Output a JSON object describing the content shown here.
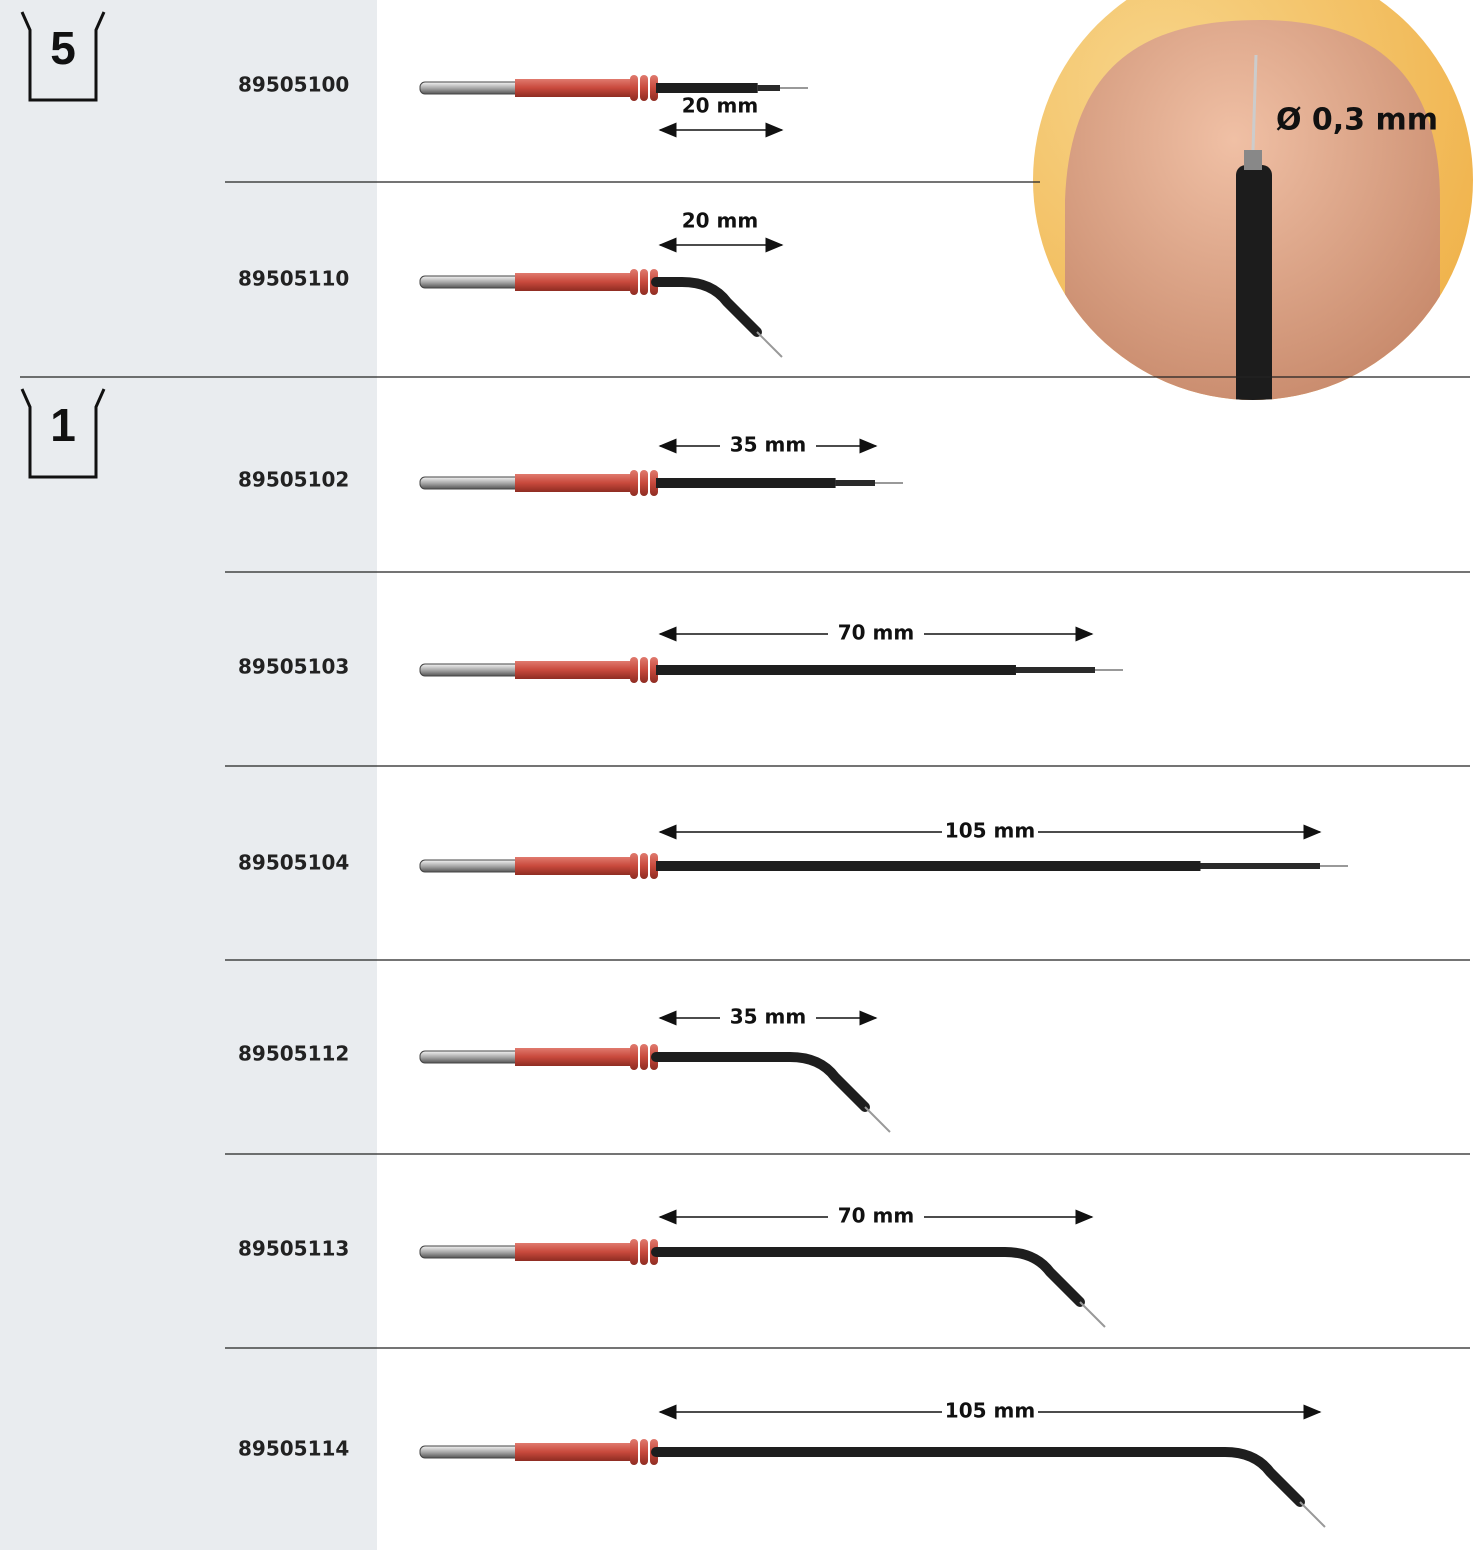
{
  "inset_label": "Ø 0,3 mm",
  "groups": [
    {
      "pack": "5",
      "items": [
        {
          "article": "89505100",
          "length": "20 mm"
        },
        {
          "article": "89505110",
          "length": "20 mm"
        }
      ]
    },
    {
      "pack": "1",
      "items": [
        {
          "article": "89505102",
          "length": "35 mm"
        },
        {
          "article": "89505103",
          "length": "70 mm"
        },
        {
          "article": "89505104",
          "length": "105 mm"
        },
        {
          "article": "89505112",
          "length": "35 mm"
        },
        {
          "article": "89505113",
          "length": "70 mm"
        },
        {
          "article": "89505114",
          "length": "105 mm"
        }
      ]
    }
  ]
}
